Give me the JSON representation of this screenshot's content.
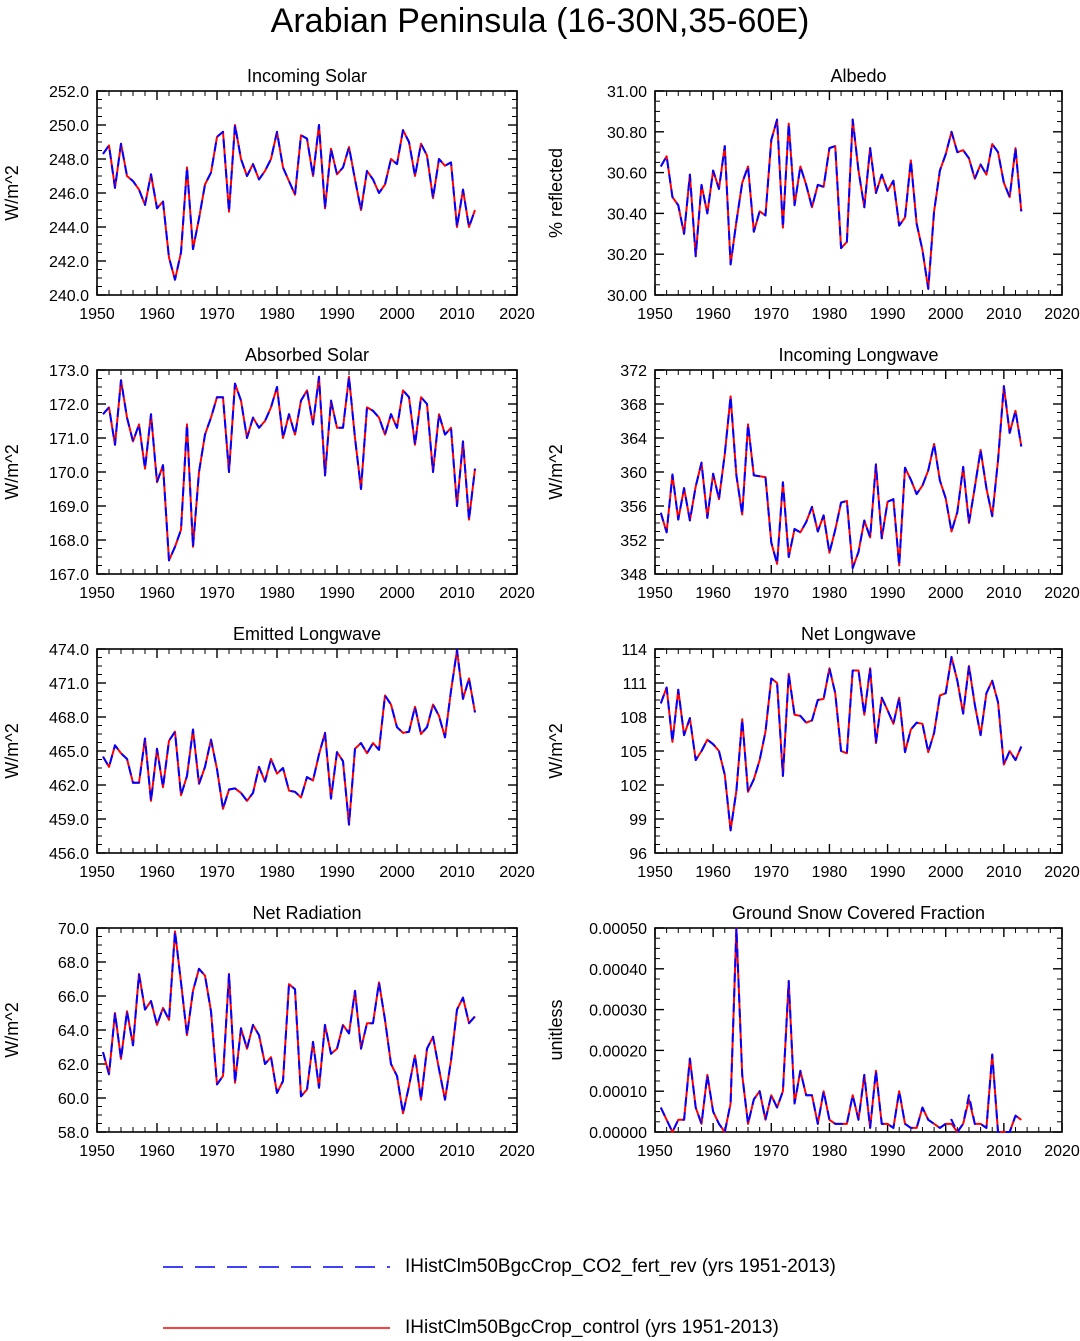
{
  "title": "Arabian Peninsula (16-30N,35-60E)",
  "legend": {
    "entries": [
      {
        "label": "IHistClm50BgcCrop_CO2_fert_rev (yrs 1951-2013)",
        "color": "#0000ff",
        "style": "dashed"
      },
      {
        "label": "IHistClm50BgcCrop_control (yrs 1951-2013)",
        "color": "#ff0000",
        "style": "solid"
      }
    ]
  },
  "chart_data": [
    {
      "type": "line",
      "title": "Incoming Solar",
      "xlabel": "",
      "ylabel": "W/m^2",
      "xlim": [
        1950,
        2020
      ],
      "ylim": [
        240,
        252
      ],
      "xticks": [
        "1950",
        "1960",
        "1970",
        "1980",
        "1990",
        "2000",
        "2010",
        "2020"
      ],
      "yticks": [
        "240.0",
        "242.0",
        "244.0",
        "246.0",
        "248.0",
        "250.0",
        "252.0"
      ],
      "x_start": 1951,
      "series": [
        {
          "name": "IHistClm50BgcCrop_CO2_fert_rev (yrs 1951-2013)",
          "values": [
            248.3,
            248.8,
            246.3,
            248.9,
            247.0,
            246.7,
            246.2,
            245.3,
            247.1,
            245.1,
            245.5,
            242.2,
            240.9,
            242.5,
            247.5,
            242.7,
            244.5,
            246.5,
            247.2,
            249.3,
            249.6,
            244.9,
            250.0,
            248.0,
            247.0,
            247.7,
            246.8,
            247.3,
            248.0,
            249.6,
            247.5,
            246.7,
            245.9,
            249.4,
            249.2,
            247.0,
            250.0,
            245.1,
            248.6,
            247.1,
            247.5,
            248.7,
            246.8,
            245.0,
            247.3,
            246.8,
            246.0,
            246.5,
            248.0,
            247.7,
            249.7,
            249.0,
            247.0,
            248.9,
            248.2,
            245.7,
            248.0,
            247.6,
            247.8,
            244.0,
            246.2,
            244.0,
            245.0
          ]
        }
      ]
    },
    {
      "type": "line",
      "title": "Albedo",
      "xlabel": "",
      "ylabel": "% reflected",
      "xlim": [
        1950,
        2020
      ],
      "ylim": [
        30.0,
        31.0
      ],
      "xticks": [
        "1950",
        "1960",
        "1970",
        "1980",
        "1990",
        "2000",
        "2010",
        "2020"
      ],
      "yticks": [
        "30.00",
        "30.20",
        "30.40",
        "30.60",
        "30.80",
        "31.00"
      ],
      "x_start": 1951,
      "series": [
        {
          "name": "IHistClm50BgcCrop_CO2_fert_rev (yrs 1951-2013)",
          "values": [
            30.63,
            30.68,
            30.48,
            30.44,
            30.3,
            30.59,
            30.19,
            30.54,
            30.4,
            30.61,
            30.52,
            30.73,
            30.15,
            30.36,
            30.55,
            30.63,
            30.31,
            30.41,
            30.39,
            30.76,
            30.86,
            30.33,
            30.84,
            30.44,
            30.63,
            30.54,
            30.43,
            30.54,
            30.53,
            30.72,
            30.73,
            30.23,
            30.26,
            30.86,
            30.61,
            30.43,
            30.72,
            30.5,
            30.59,
            30.51,
            30.56,
            30.34,
            30.38,
            30.66,
            30.35,
            30.22,
            30.03,
            30.41,
            30.61,
            30.69,
            30.8,
            30.7,
            30.71,
            30.67,
            30.57,
            30.64,
            30.59,
            30.74,
            30.7,
            30.55,
            30.48,
            30.72,
            30.41
          ]
        }
      ]
    },
    {
      "type": "line",
      "title": "Absorbed Solar",
      "xlabel": "",
      "ylabel": "W/m^2",
      "xlim": [
        1950,
        2020
      ],
      "ylim": [
        167.0,
        173.0
      ],
      "xticks": [
        "1950",
        "1960",
        "1970",
        "1980",
        "1990",
        "2000",
        "2010",
        "2020"
      ],
      "yticks": [
        "167.0",
        "168.0",
        "169.0",
        "170.0",
        "171.0",
        "172.0",
        "173.0"
      ],
      "x_start": 1951,
      "series": [
        {
          "name": "IHistClm50BgcCrop_CO2_fert_rev (yrs 1951-2013)",
          "values": [
            171.7,
            171.9,
            170.8,
            172.7,
            171.6,
            170.9,
            171.4,
            170.1,
            171.7,
            169.7,
            170.2,
            167.4,
            167.8,
            168.3,
            171.4,
            167.8,
            170.0,
            171.1,
            171.6,
            172.2,
            172.2,
            170.0,
            172.6,
            172.1,
            171.0,
            171.6,
            171.3,
            171.5,
            171.9,
            172.5,
            171.0,
            171.7,
            171.1,
            172.1,
            172.4,
            171.4,
            172.8,
            169.9,
            172.1,
            171.3,
            171.3,
            172.8,
            171.0,
            169.5,
            171.9,
            171.8,
            171.6,
            171.1,
            171.7,
            171.3,
            172.4,
            172.2,
            170.8,
            172.2,
            172.0,
            170.0,
            171.7,
            171.1,
            171.3,
            169.0,
            170.9,
            168.6,
            170.1
          ]
        }
      ]
    },
    {
      "type": "line",
      "title": "Incoming Longwave",
      "xlabel": "",
      "ylabel": "W/m^2",
      "xlim": [
        1950,
        2020
      ],
      "ylim": [
        348,
        372
      ],
      "xticks": [
        "1950",
        "1960",
        "1970",
        "1980",
        "1990",
        "2000",
        "2010",
        "2020"
      ],
      "yticks": [
        "348",
        "352",
        "356",
        "360",
        "364",
        "368",
        "372"
      ],
      "x_start": 1951,
      "series": [
        {
          "name": "IHistClm50BgcCrop_CO2_fert_rev (yrs 1951-2013)",
          "values": [
            355.2,
            352.9,
            359.7,
            354.4,
            358.1,
            354.3,
            358.3,
            361.1,
            354.6,
            359.8,
            356.8,
            362.1,
            368.9,
            359.6,
            355.0,
            365.6,
            359.6,
            359.5,
            359.4,
            351.7,
            349.2,
            358.8,
            350.0,
            353.3,
            352.9,
            354.1,
            355.9,
            353.0,
            354.9,
            350.5,
            353.2,
            356.4,
            356.6,
            348.7,
            350.6,
            354.3,
            352.3,
            360.9,
            352.2,
            356.5,
            356.8,
            349.0,
            360.5,
            359.1,
            357.4,
            358.4,
            360.2,
            363.3,
            359.0,
            356.9,
            353.0,
            355.3,
            360.6,
            354.0,
            358.2,
            362.6,
            358.1,
            354.8,
            361.4,
            370.1,
            364.6,
            367.2,
            363.0
          ]
        }
      ]
    },
    {
      "type": "line",
      "title": "Emitted Longwave",
      "xlabel": "",
      "ylabel": "W/m^2",
      "xlim": [
        1950,
        2020
      ],
      "ylim": [
        456.0,
        474.0
      ],
      "xticks": [
        "1950",
        "1960",
        "1970",
        "1980",
        "1990",
        "2000",
        "2010",
        "2020"
      ],
      "yticks": [
        "456.0",
        "459.0",
        "462.0",
        "465.0",
        "468.0",
        "471.0",
        "474.0"
      ],
      "x_start": 1951,
      "series": [
        {
          "name": "IHistClm50BgcCrop_CO2_fert_rev (yrs 1951-2013)",
          "values": [
            464.5,
            463.6,
            465.5,
            464.8,
            464.3,
            462.2,
            462.2,
            466.1,
            460.6,
            465.2,
            461.8,
            465.9,
            466.7,
            461.1,
            462.8,
            466.9,
            462.1,
            463.6,
            466.0,
            463.4,
            459.9,
            461.6,
            461.7,
            461.3,
            460.6,
            461.3,
            463.6,
            462.3,
            464.3,
            463.0,
            463.5,
            461.5,
            461.4,
            460.9,
            462.7,
            462.4,
            464.7,
            466.6,
            460.8,
            464.9,
            464.1,
            458.5,
            465.2,
            465.7,
            464.8,
            465.7,
            465.1,
            469.9,
            469.1,
            467.1,
            466.6,
            466.7,
            468.9,
            466.5,
            467.1,
            469.1,
            468.1,
            466.2,
            470.3,
            473.9,
            469.6,
            471.4,
            468.4
          ]
        }
      ]
    },
    {
      "type": "line",
      "title": "Net Longwave",
      "xlabel": "",
      "ylabel": "W/m^2",
      "xlim": [
        1950,
        2020
      ],
      "ylim": [
        96,
        114
      ],
      "xticks": [
        "1950",
        "1960",
        "1970",
        "1980",
        "1990",
        "2000",
        "2010",
        "2020"
      ],
      "yticks": [
        "96",
        "99",
        "102",
        "105",
        "108",
        "111",
        "114"
      ],
      "x_start": 1951,
      "series": [
        {
          "name": "IHistClm50BgcCrop_CO2_fert_rev (yrs 1951-2013)",
          "values": [
            109.2,
            110.6,
            105.8,
            110.4,
            106.4,
            107.9,
            104.2,
            105.0,
            106.0,
            105.6,
            105.0,
            102.9,
            98.0,
            101.5,
            107.8,
            101.4,
            102.5,
            104.2,
            106.7,
            111.4,
            111.0,
            102.8,
            111.8,
            108.2,
            108.1,
            107.5,
            107.7,
            109.5,
            109.6,
            112.3,
            110.1,
            105.0,
            104.8,
            112.1,
            112.1,
            108.2,
            112.3,
            105.7,
            109.7,
            108.6,
            107.4,
            109.7,
            104.9,
            106.9,
            107.5,
            107.4,
            104.9,
            106.6,
            109.9,
            110.1,
            113.3,
            111.2,
            108.3,
            112.5,
            109.1,
            106.4,
            110.1,
            111.2,
            109.3,
            103.8,
            105.0,
            104.2,
            105.4
          ]
        }
      ]
    },
    {
      "type": "line",
      "title": "Net Radiation",
      "xlabel": "",
      "ylabel": "W/m^2",
      "xlim": [
        1950,
        2020
      ],
      "ylim": [
        58.0,
        70.0
      ],
      "xticks": [
        "1950",
        "1960",
        "1970",
        "1980",
        "1990",
        "2000",
        "2010",
        "2020"
      ],
      "yticks": [
        "58.0",
        "60.0",
        "62.0",
        "64.0",
        "66.0",
        "68.0",
        "70.0"
      ],
      "x_start": 1951,
      "series": [
        {
          "name": "IHistClm50BgcCrop_CO2_fert_rev (yrs 1951-2013)",
          "values": [
            62.7,
            61.4,
            65.0,
            62.3,
            65.1,
            63.1,
            67.3,
            65.2,
            65.7,
            64.3,
            65.3,
            64.6,
            69.8,
            66.8,
            63.7,
            66.3,
            67.6,
            67.2,
            65.1,
            60.8,
            61.3,
            67.3,
            60.9,
            64.1,
            62.9,
            64.3,
            63.7,
            62.0,
            62.4,
            60.3,
            61.0,
            66.7,
            66.4,
            60.1,
            60.5,
            63.3,
            60.6,
            64.3,
            62.6,
            62.9,
            64.3,
            63.8,
            66.3,
            62.9,
            64.4,
            64.4,
            66.8,
            64.6,
            62.0,
            61.3,
            59.1,
            60.7,
            62.5,
            59.9,
            62.9,
            63.6,
            61.7,
            59.9,
            62.2,
            65.2,
            65.9,
            64.4,
            64.8
          ]
        }
      ]
    },
    {
      "type": "line",
      "title": "Ground Snow Covered Fraction",
      "xlabel": "",
      "ylabel": "unitless",
      "xlim": [
        1950,
        2020
      ],
      "ylim": [
        0,
        0.0005
      ],
      "xticks": [
        "1950",
        "1960",
        "1970",
        "1980",
        "1990",
        "2000",
        "2010",
        "2020"
      ],
      "yticks": [
        "0.00000",
        "0.00010",
        "0.00020",
        "0.00030",
        "0.00040",
        "0.00050"
      ],
      "x_start": 1951,
      "series": [
        {
          "name": "IHistClm50BgcCrop_CO2_fert_rev (yrs 1951-2013)",
          "values": [
            6e-05,
            3e-05,
            0.0,
            3e-05,
            3e-05,
            0.00018,
            6e-05,
            2e-05,
            0.00014,
            5e-05,
            2e-05,
            0.0,
            7e-05,
            0.0005,
            0.00014,
            2e-05,
            8e-05,
            0.0001,
            3e-05,
            9e-05,
            6e-05,
            0.0001,
            0.00037,
            7e-05,
            0.00015,
            9e-05,
            9e-05,
            2e-05,
            0.0001,
            3e-05,
            2e-05,
            2e-05,
            2e-05,
            9e-05,
            3e-05,
            0.00014,
            1e-05,
            0.00015,
            2e-05,
            2e-05,
            1e-05,
            0.0001,
            2e-05,
            1e-05,
            1e-05,
            6e-05,
            3e-05,
            2e-05,
            1e-05,
            2e-05,
            3e-05,
            0.0,
            2e-05,
            9e-05,
            2e-05,
            2e-05,
            1e-05,
            0.00019,
            0.0,
            0.0,
            0.0,
            4e-05,
            3e-05
          ]
        },
        {
          "name": "IHistClm50BgcCrop_control (yrs 1951-2013)",
          "values": [
            6e-05,
            3e-05,
            0.0,
            3e-05,
            3e-05,
            0.00018,
            6e-05,
            2e-05,
            0.00014,
            5e-05,
            2e-05,
            0.0,
            7e-05,
            0.0005,
            0.00014,
            2e-05,
            8e-05,
            0.0001,
            3e-05,
            9e-05,
            6e-05,
            0.0001,
            0.00037,
            7e-05,
            0.00015,
            9e-05,
            9e-05,
            2e-05,
            0.0001,
            3e-05,
            2e-05,
            2e-05,
            2e-05,
            9e-05,
            3e-05,
            0.00014,
            1e-05,
            0.00015,
            2e-05,
            2e-05,
            1e-05,
            0.0001,
            2e-05,
            1e-05,
            1e-05,
            6e-05,
            3e-05,
            2e-05,
            1e-05,
            2e-05,
            2e-05,
            0.0,
            2e-05,
            8e-05,
            2e-05,
            2e-05,
            1e-05,
            0.00019,
            0.0,
            0.0,
            0.0,
            4e-05,
            3e-05
          ]
        }
      ]
    }
  ]
}
